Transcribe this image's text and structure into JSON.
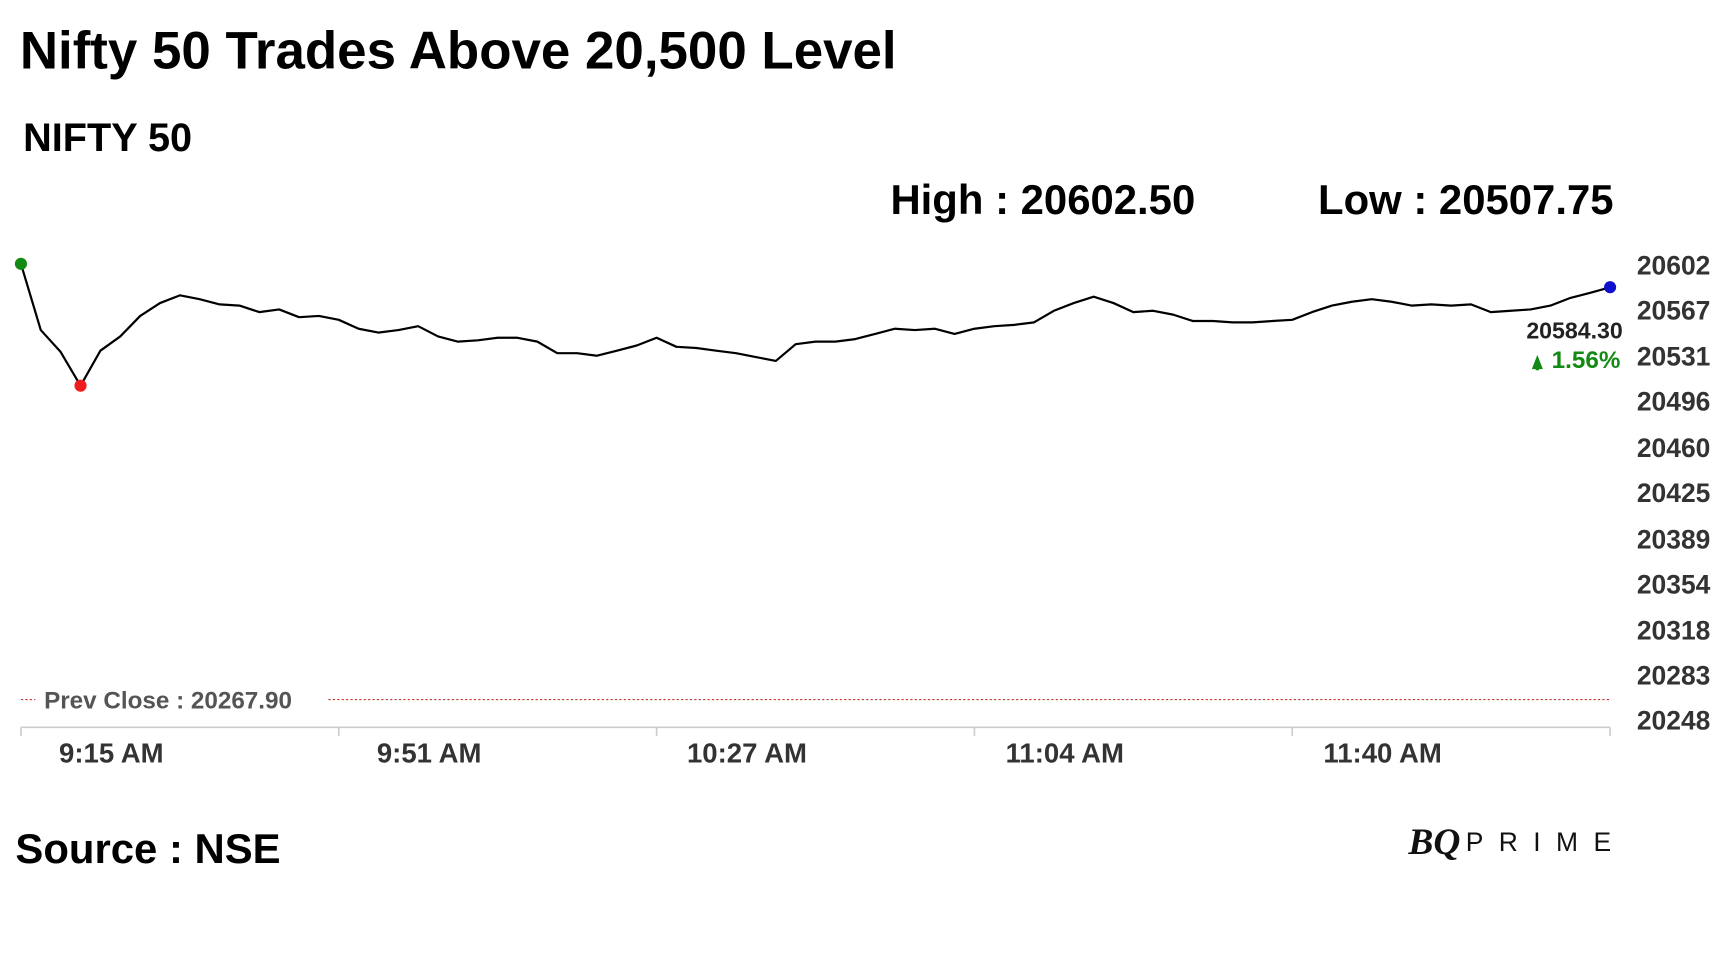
{
  "chart_data": {
    "type": "line",
    "title": "Nifty 50 Trades Above 20,500 Level",
    "subtitle": "NIFTY 50",
    "high_label": "High : 20602.50",
    "low_label": "Low : 20507.75",
    "last_value_label": "20584.30",
    "change_label": "1.56%",
    "prev_close": 20267.9,
    "prev_close_label": "Prev Close : 20267.90",
    "source": "Source : NSE",
    "logo_mark": "BQ",
    "logo_text": "PRIME",
    "color": "#000000",
    "high_color": "#138a13",
    "low_color": "#ee1c1c",
    "last_color": "#1010cc",
    "change_color": "#138a13",
    "prev_close_color": "#c0392b",
    "categories": [
      "9:15 AM",
      null,
      null,
      null,
      null,
      null,
      null,
      null,
      null,
      null,
      null,
      null,
      null,
      null,
      null,
      null,
      "9:51 AM",
      null,
      null,
      null,
      null,
      null,
      null,
      null,
      null,
      null,
      null,
      null,
      null,
      null,
      null,
      null,
      "10:27 AM",
      null,
      null,
      null,
      null,
      null,
      null,
      null,
      null,
      null,
      null,
      null,
      null,
      null,
      null,
      null,
      "11:04 AM",
      null,
      null,
      null,
      null,
      null,
      null,
      null,
      null,
      null,
      null,
      null,
      null,
      null,
      null,
      null,
      "11:40 AM",
      null,
      null,
      null,
      null,
      null,
      null,
      null,
      null,
      null,
      null,
      null,
      null,
      null,
      null,
      null,
      null
    ],
    "values": [
      20602.5,
      20551,
      20534,
      20507.75,
      20535,
      20546,
      20562,
      20572,
      20578,
      20575,
      20571,
      20570,
      20565,
      20567,
      20561,
      20562,
      20559,
      20552,
      20549,
      20551,
      20554,
      20546,
      20542,
      20543,
      20545,
      20545,
      20542,
      20533,
      20533,
      20531,
      20535,
      20539,
      20545,
      20538,
      20537,
      20535,
      20533,
      20530,
      20527,
      20540,
      20542,
      20542,
      20544,
      20548,
      20552,
      20551,
      20552,
      20548,
      20552,
      20554,
      20555,
      20557,
      20566,
      20572,
      20577,
      20572,
      20565,
      20566,
      20563,
      20558,
      20558,
      20557,
      20557,
      20558,
      20559,
      20565,
      20570,
      20573,
      20575,
      20573,
      20570,
      20571,
      20570,
      20571,
      20565,
      20566,
      20567,
      20570,
      20576,
      20580,
      20584.3
    ],
    "ylim": [
      20248,
      20602
    ],
    "yticks": [
      20602,
      20567,
      20531,
      20496,
      20460,
      20425,
      20389,
      20354,
      20318,
      20283,
      20248
    ]
  }
}
